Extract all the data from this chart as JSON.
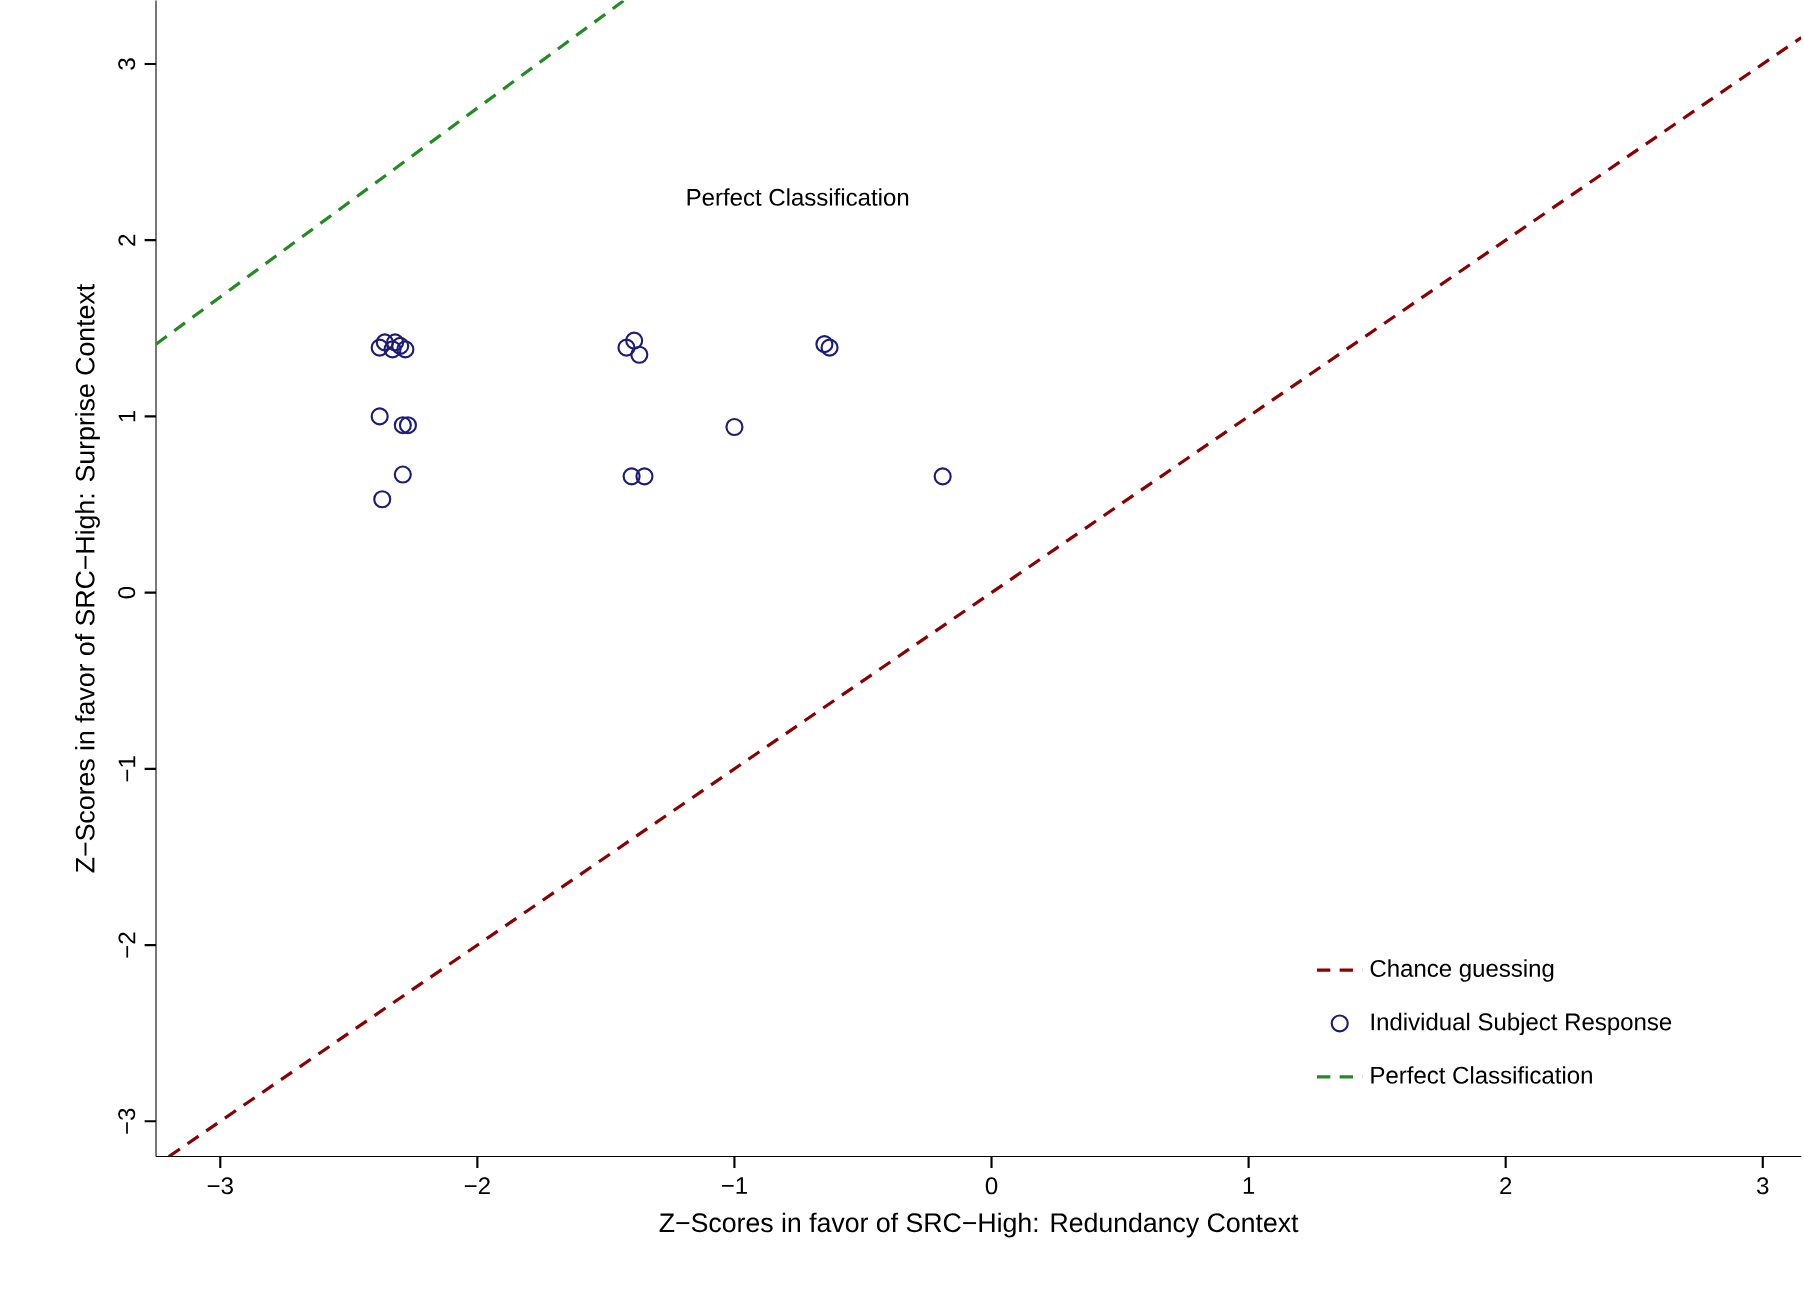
{
  "chart_data": {
    "type": "scatter",
    "xlabel": "Z−Scores in favor of SRC−High: Redundancy Context",
    "ylabel": "Z−Scores in favor of SRC−High: Surprise Context",
    "xlim": [
      -3.25,
      3.15
    ],
    "ylim": [
      -3.2,
      3.36
    ],
    "xticks": [
      {
        "value": -3,
        "label": "−3"
      },
      {
        "value": -2,
        "label": "−2"
      },
      {
        "value": -1,
        "label": "−1"
      },
      0,
      1,
      2,
      3
    ],
    "yticks": [
      {
        "value": -3,
        "label": "−3"
      },
      {
        "value": -2,
        "label": "−2"
      },
      {
        "value": -1,
        "label": "−1"
      },
      0,
      1,
      2,
      3
    ],
    "annotations": [
      "Perfect Classification"
    ],
    "legend": "bottom right",
    "series": [
      {
        "name": "Chance guessing",
        "type": "line",
        "line_style": "dashed",
        "marker": "none",
        "color": "#8b0000",
        "x": [
          -3.2,
          3.15
        ],
        "values": [
          -3.2,
          3.15
        ]
      },
      {
        "name": "Individual Subject Response",
        "marker": "circle",
        "color": "#1c1c7a",
        "x": [
          -2.38,
          -2.36,
          -2.33,
          -2.3,
          -2.28,
          -2.32,
          -1.42,
          -1.39,
          -1.37,
          -0.65,
          -0.63,
          -2.38,
          -2.29,
          -2.27,
          -1.0,
          -2.29,
          -2.37,
          -1.4,
          -1.35,
          -0.19
        ],
        "values": [
          1.39,
          1.42,
          1.38,
          1.4,
          1.38,
          1.42,
          1.39,
          1.43,
          1.35,
          1.41,
          1.39,
          1.0,
          0.95,
          0.95,
          0.94,
          0.67,
          0.53,
          0.66,
          0.66,
          0.66
        ]
      },
      {
        "name": "Perfect Classification",
        "type": "line",
        "line_style": "dashed",
        "marker": "none",
        "color": "#228b22",
        "x": [
          -3.25,
          -1.43
        ],
        "values": [
          1.41,
          3.36
        ]
      }
    ]
  }
}
